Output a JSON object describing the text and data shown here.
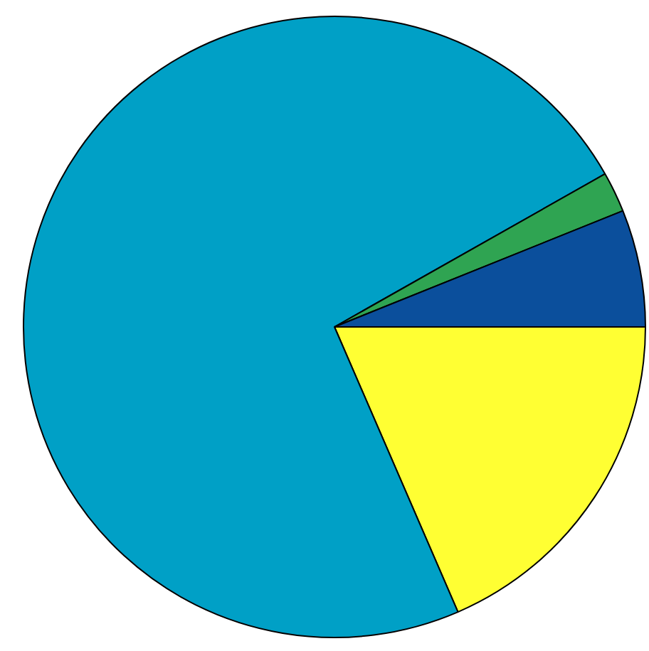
{
  "chart_data": {
    "type": "pie",
    "categories": [
      null,
      null,
      null,
      null
    ],
    "values": [
      18.5,
      73.3,
      2.1,
      6.1
    ],
    "colors": [
      "#ffff33",
      "#00a0c6",
      "#2fa452",
      "#0b4f9c"
    ],
    "legend": false
  }
}
